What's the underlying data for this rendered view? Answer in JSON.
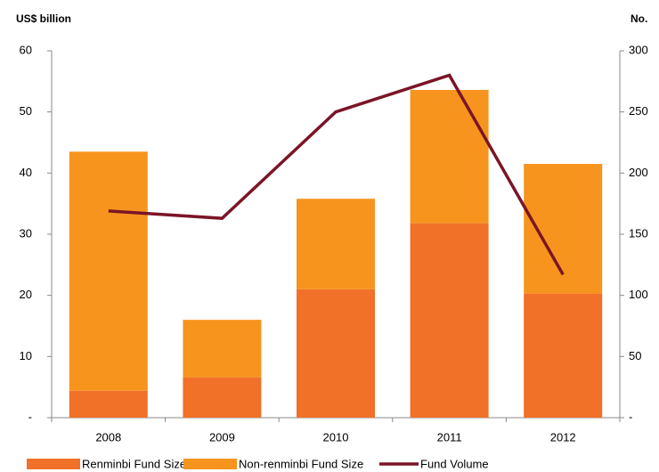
{
  "chart_data": {
    "type": "bar_line",
    "y_label": "US$ billion",
    "y2_label": "No.",
    "categories": [
      "2008",
      "2009",
      "2010",
      "2011",
      "2012"
    ],
    "series": [
      {
        "name": "Renminbi Fund Size",
        "color": "#f07127",
        "type": "bar",
        "stack": true,
        "values": [
          4.4,
          6.6,
          21.0,
          31.8,
          20.3
        ]
      },
      {
        "name": "Non-renminbi Fund Size",
        "color": "#f7941e",
        "type": "bar",
        "stack": true,
        "values": [
          39.1,
          9.4,
          14.8,
          21.8,
          21.2
        ]
      },
      {
        "name": "Fund Volume",
        "color": "#7b1526",
        "type": "line",
        "axis": "y2",
        "values": [
          169,
          163,
          250,
          280,
          117
        ]
      }
    ],
    "ylim": [
      0,
      60
    ],
    "yticks": [
      {
        "value": 0,
        "label": "-"
      },
      10,
      20,
      30,
      40,
      50,
      60
    ],
    "y2lim": [
      0,
      300
    ],
    "y2ticks": [
      {
        "value": 0,
        "label": "-"
      },
      50,
      100,
      150,
      200,
      250,
      300
    ],
    "grid": false,
    "legend": "bottom"
  }
}
